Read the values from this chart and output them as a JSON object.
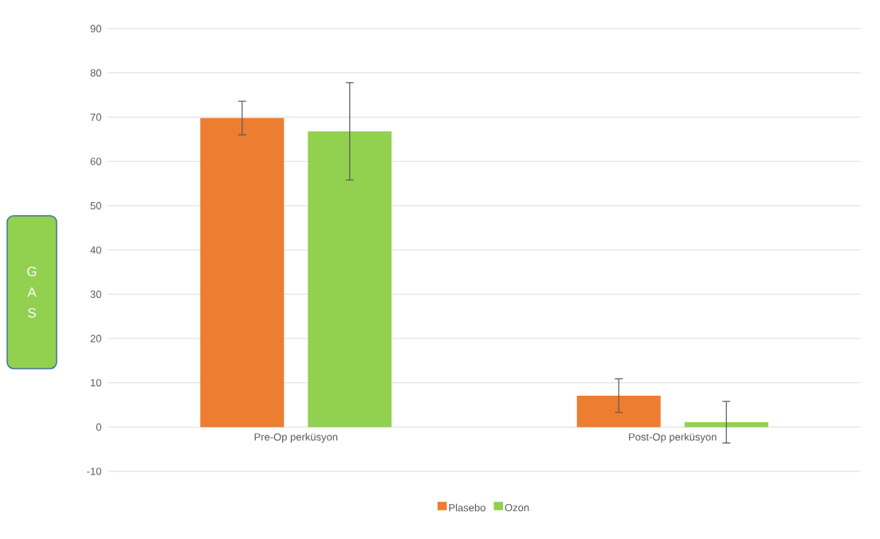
{
  "chart_data": {
    "type": "bar",
    "ylabel": "G A S",
    "categories": [
      "Pre-Op perküsyon",
      "Post-Op perküsyon"
    ],
    "series": [
      {
        "name": "Plasebo",
        "color": "#ed7d31",
        "values": [
          69.8,
          7.1
        ],
        "errors": [
          3.8,
          3.8
        ]
      },
      {
        "name": "Ozon",
        "color": "#92d050",
        "values": [
          66.8,
          1.1
        ],
        "errors": [
          11,
          4.7
        ]
      }
    ],
    "ylim": [
      -10,
      90
    ],
    "yticks": [
      -10,
      0,
      10,
      20,
      30,
      40,
      50,
      60,
      70,
      80,
      90
    ],
    "grid": "y",
    "legend": "bottom"
  }
}
